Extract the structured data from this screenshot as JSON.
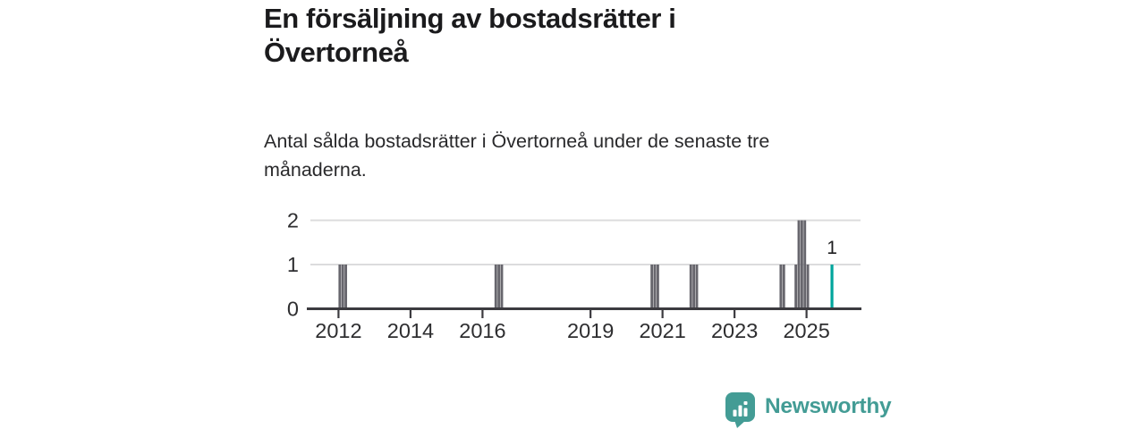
{
  "header": {
    "title": "En försäljning av bostadsrätter i Övertorneå",
    "subtitle": "Antal sålda bostadsrätter i Övertorneå under de senaste tre månaderna."
  },
  "chart_data": {
    "type": "bar",
    "title": "En försäljning av bostadsrätter i Övertorneå",
    "subtitle": "Antal sålda bostadsrätter i Övertorneå under de senaste tre månaderna.",
    "x_domain": [
      2011.17,
      2026.5
    ],
    "y_domain": [
      0,
      2
    ],
    "x_ticks": [
      2012,
      2014,
      2016,
      2019,
      2021,
      2023,
      2025
    ],
    "y_ticks": [
      0,
      1,
      2
    ],
    "grid": "horizontal-gridlines-at-1-and-2",
    "bar_unit": "month",
    "bars": [
      {
        "month": "2012-01",
        "value": 1
      },
      {
        "month": "2012-02",
        "value": 1
      },
      {
        "month": "2012-03",
        "value": 1
      },
      {
        "month": "2016-05",
        "value": 1
      },
      {
        "month": "2016-06",
        "value": 1
      },
      {
        "month": "2016-07",
        "value": 1
      },
      {
        "month": "2020-09",
        "value": 1
      },
      {
        "month": "2020-10",
        "value": 1
      },
      {
        "month": "2020-11",
        "value": 1
      },
      {
        "month": "2021-10",
        "value": 1
      },
      {
        "month": "2021-11",
        "value": 1
      },
      {
        "month": "2021-12",
        "value": 1
      },
      {
        "month": "2024-04",
        "value": 1
      },
      {
        "month": "2024-05",
        "value": 1
      },
      {
        "month": "2024-09",
        "value": 1
      },
      {
        "month": "2024-10",
        "value": 2
      },
      {
        "month": "2024-11",
        "value": 2
      },
      {
        "month": "2024-12",
        "value": 2
      },
      {
        "month": "2025-01",
        "value": 1
      },
      {
        "month": "2025-09",
        "value": 1,
        "highlight": true,
        "label": "1"
      }
    ],
    "colors": {
      "bar": "#67666d",
      "highlight": "#00a59c",
      "grid": "#dcdcdd",
      "axis": "#3c3b40",
      "tick_label": "#2e2e30"
    },
    "legend": "none"
  },
  "logo": {
    "text": "Newsworthy",
    "color": "#439c95"
  }
}
